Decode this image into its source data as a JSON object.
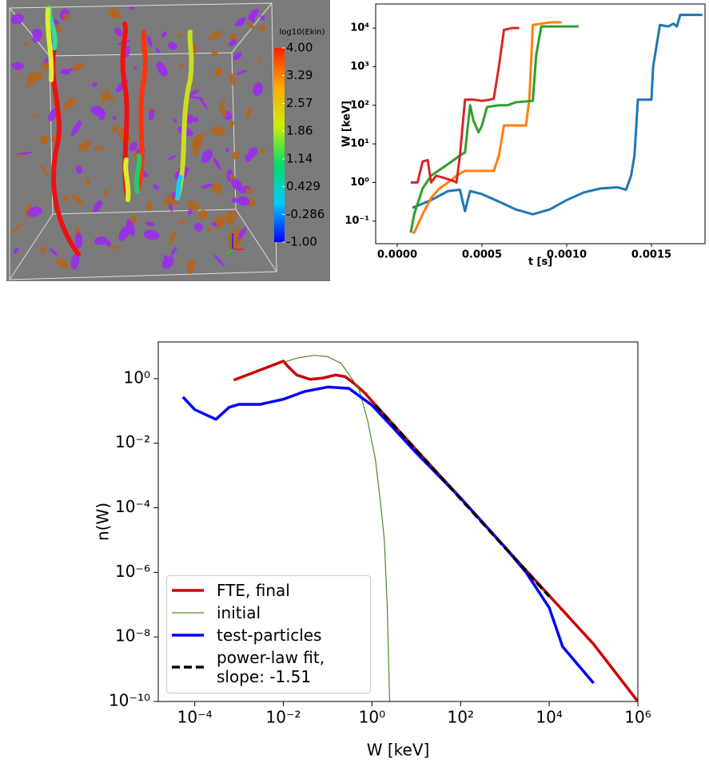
{
  "render": {
    "colorbar": {
      "title": "log10(Ekin)",
      "ticks": [
        {
          "value": 4,
          "label": "4.00"
        },
        3.29,
        2.57,
        1.86,
        1.14,
        0.429,
        -0.286,
        {
          "value": -1,
          "label": "-1.00"
        }
      ]
    }
  },
  "chart_data": [
    {
      "type": "line",
      "x_label": "t [s]",
      "y_label": "W [keV]",
      "y_log": true,
      "xlim": [
        -0.000127,
        0.001816
      ],
      "ylim": [
        0.026,
        42000
      ],
      "xticks": [
        {
          "value": 0,
          "label": "0.0000"
        },
        0.0005,
        {
          "value": 0.001,
          "label": "0.0010"
        },
        0.0015
      ],
      "yticks": [
        {
          "value": 0.1,
          "label": "10⁻¹"
        },
        {
          "value": 1,
          "label": "10⁰"
        },
        {
          "value": 10,
          "label": "10¹"
        },
        {
          "value": 100,
          "label": "10²"
        },
        {
          "value": 1000,
          "label": "10³"
        },
        {
          "value": 10000,
          "label": "10⁴"
        }
      ],
      "series": [
        {
          "color": "#1f77b4",
          "x": [
            9e-05,
            0.0002,
            0.0003,
            0.00037,
            0.0004,
            0.00043,
            0.0005,
            0.0006,
            0.0007,
            0.0008,
            0.0009,
            0.001,
            0.0011,
            0.0012,
            0.0013,
            0.00135,
            0.00138,
            0.0014,
            0.00142,
            0.00145,
            0.0015,
            0.00151,
            0.00155,
            0.0016,
            0.00163,
            0.00165,
            0.00167,
            0.0018
          ],
          "values": [
            0.22,
            0.35,
            0.6,
            0.65,
            0.18,
            0.6,
            0.5,
            0.32,
            0.2,
            0.15,
            0.2,
            0.35,
            0.55,
            0.7,
            0.75,
            0.65,
            1.5,
            5,
            140,
            140,
            140,
            1000,
            12000,
            11000,
            13000,
            11000,
            22000,
            22000
          ]
        },
        {
          "color": "#ff7f0e",
          "x": [
            9e-05,
            0.0001,
            0.00015,
            0.0002,
            0.00025,
            0.0003,
            0.00035,
            0.0004,
            0.0005,
            0.00057,
            0.0006,
            0.00063,
            0.0007,
            0.00076,
            0.00078,
            0.0008,
            0.0009,
            0.00097
          ],
          "values": [
            0.05,
            0.05,
            0.15,
            0.4,
            0.7,
            1,
            1.5,
            2,
            2,
            2,
            5,
            30,
            30,
            30,
            150,
            12000,
            14000,
            14000
          ]
        },
        {
          "color": "#2ca02c",
          "x": [
            8e-05,
            0.0001,
            0.00015,
            0.0002,
            0.0003,
            0.00037,
            0.0004,
            0.00043,
            0.00045,
            0.00048,
            0.0005,
            0.00053,
            0.0006,
            0.00065,
            0.0007,
            0.0008,
            0.00082,
            0.00085,
            0.0009,
            0.00107
          ],
          "values": [
            0.05,
            0.15,
            0.7,
            1.5,
            3,
            5,
            6,
            100,
            40,
            20,
            30,
            90,
            100,
            100,
            120,
            130,
            2000,
            11000,
            11000,
            11000
          ]
        },
        {
          "color": "#d62728",
          "x": [
            8e-05,
            0.00012,
            0.00015,
            0.00018,
            0.0002,
            0.00023,
            0.00028,
            0.00033,
            0.00035,
            0.00037,
            0.0004,
            0.00045,
            0.0005,
            0.00055,
            0.00057,
            0.0006,
            0.00063,
            0.00068,
            0.00072
          ],
          "values": [
            1,
            1,
            3.5,
            3.8,
            1,
            1.5,
            1.3,
            1.1,
            1,
            5,
            140,
            140,
            130,
            140,
            150,
            1000,
            9000,
            10000,
            10000
          ]
        }
      ]
    },
    {
      "type": "line",
      "x_label": "W [keV]",
      "y_label": "n(W)",
      "x_log": true,
      "y_log": true,
      "legend": "lower left",
      "xlim": [
        1.5e-05,
        1000000
      ],
      "ylim": [
        1e-10,
        13.7
      ],
      "xticks": [
        {
          "value": 0.0001,
          "label": "10⁻⁴"
        },
        {
          "value": 0.01,
          "label": "10⁻²"
        },
        {
          "value": 1,
          "label": "10⁰"
        },
        {
          "value": 100,
          "label": "10²"
        },
        {
          "value": 10000,
          "label": "10⁴"
        },
        {
          "value": 1000000,
          "label": "10⁶"
        }
      ],
      "yticks": [
        {
          "value": 1e-10,
          "label": "10⁻¹⁰"
        },
        {
          "value": 1e-08,
          "label": "10⁻⁸"
        },
        {
          "value": 1e-06,
          "label": "10⁻⁶"
        },
        {
          "value": 0.0001,
          "label": "10⁻⁴"
        },
        {
          "value": 0.01,
          "label": "10⁻²"
        },
        {
          "value": 1,
          "label": "10⁰"
        }
      ],
      "series": [
        {
          "name": "FTE, final",
          "color": "#cc0000",
          "linewidth": 3.5,
          "x": [
            0.00076,
            0.01,
            0.013,
            0.02,
            0.04,
            0.08,
            0.15,
            0.25,
            0.4,
            0.7,
            1,
            10,
            100,
            1000,
            10000,
            100000,
            1000000
          ],
          "values": [
            0.9,
            3.5,
            2.3,
            1.3,
            0.95,
            1.05,
            1.3,
            1.15,
            0.7,
            0.35,
            0.2,
            0.0062,
            0.0002,
            6e-06,
            1.9e-07,
            6e-09,
            1e-10
          ]
        },
        {
          "name": "initial",
          "color": "#4e8a26",
          "linewidth": 1.2,
          "x": [
            0.01,
            0.02,
            0.05,
            0.1,
            0.2,
            0.5,
            0.8,
            1.2,
            1.6,
            1.9,
            2.2,
            2.5
          ],
          "values": [
            3.2,
            4.3,
            5.3,
            4.8,
            3,
            0.5,
            0.05,
            0.003,
            0.0001,
            1e-05,
            1e-07,
            1e-10
          ]
        },
        {
          "name": "test-particles",
          "color": "#0000ff",
          "linewidth": 3.5,
          "x": [
            5.4e-05,
            0.0001,
            0.0003,
            0.0006,
            0.001,
            0.003,
            0.01,
            0.03,
            0.1,
            0.3,
            0.6,
            1,
            3,
            10,
            100,
            1000,
            3000,
            10000,
            20000,
            100000
          ],
          "values": [
            0.27,
            0.11,
            0.055,
            0.13,
            0.16,
            0.16,
            0.23,
            0.4,
            0.55,
            0.5,
            0.25,
            0.15,
            0.03,
            0.005,
            0.0002,
            6e-06,
            1e-06,
            8e-08,
            5e-09,
            3.7e-10
          ]
        },
        {
          "name": "power-law fit,\nslope: -1.51",
          "color": "#000000",
          "linewidth": 3.5,
          "dashed": true,
          "x": [
            1.2,
            10000
          ],
          "values": [
            0.15,
            1.8e-07
          ]
        }
      ]
    }
  ]
}
